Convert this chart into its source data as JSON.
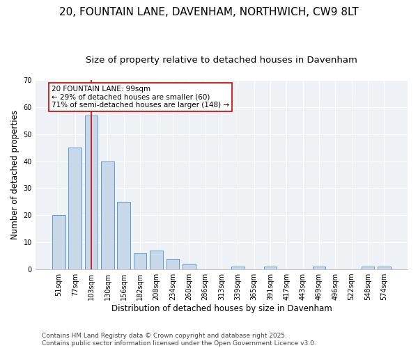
{
  "title_line1": "20, FOUNTAIN LANE, DAVENHAM, NORTHWICH, CW9 8LT",
  "title_line2": "Size of property relative to detached houses in Davenham",
  "xlabel": "Distribution of detached houses by size in Davenham",
  "ylabel": "Number of detached properties",
  "categories": [
    "51sqm",
    "77sqm",
    "103sqm",
    "130sqm",
    "156sqm",
    "182sqm",
    "208sqm",
    "234sqm",
    "260sqm",
    "286sqm",
    "313sqm",
    "339sqm",
    "365sqm",
    "391sqm",
    "417sqm",
    "443sqm",
    "469sqm",
    "496sqm",
    "522sqm",
    "548sqm",
    "574sqm"
  ],
  "values": [
    20,
    45,
    57,
    40,
    25,
    6,
    7,
    4,
    2,
    0,
    0,
    1,
    0,
    1,
    0,
    0,
    1,
    0,
    0,
    1,
    1
  ],
  "ylim": [
    0,
    70
  ],
  "yticks": [
    0,
    10,
    20,
    30,
    40,
    50,
    60,
    70
  ],
  "bar_color": "#c8d8e8",
  "bar_edge_color": "#5b9bd5",
  "bar_width": 0.8,
  "vline_index": 2,
  "vline_color": "#cc0000",
  "annotation_text": "20 FOUNTAIN LANE: 99sqm\n← 29% of detached houses are smaller (60)\n71% of semi-detached houses are larger (148) →",
  "bg_color": "#eef2f7",
  "footer_text": "Contains HM Land Registry data © Crown copyright and database right 2025.\nContains public sector information licensed under the Open Government Licence v3.0.",
  "title_fontsize": 11,
  "subtitle_fontsize": 9.5,
  "axis_label_fontsize": 8.5,
  "tick_fontsize": 7,
  "annotation_fontsize": 7.5,
  "footer_fontsize": 6.5
}
